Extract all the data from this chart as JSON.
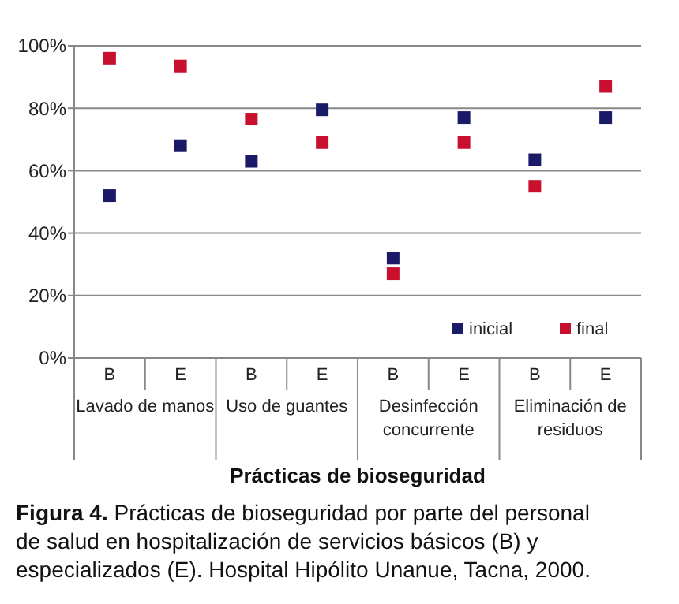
{
  "chart_data": {
    "type": "scatter",
    "xlabel": "Prácticas de bioseguridad",
    "categories": [
      "B",
      "E",
      "B",
      "E",
      "B",
      "E",
      "B",
      "E"
    ],
    "series": [
      {
        "name": "inicial",
        "color": "#1a1a66",
        "values": [
          52,
          68,
          63,
          79.5,
          32,
          77,
          63.5,
          77
        ]
      },
      {
        "name": "final",
        "color": "#c8102e",
        "values": [
          96,
          93.5,
          76.5,
          69,
          27,
          69,
          55,
          87
        ]
      }
    ],
    "ylim": [
      0,
      100
    ],
    "yticks": [
      {
        "value": 0,
        "label": "0%"
      },
      {
        "value": 20,
        "label": "20%"
      },
      {
        "value": 40,
        "label": "40%"
      },
      {
        "value": 60,
        "label": "60%"
      },
      {
        "value": 80,
        "label": "80%"
      },
      {
        "value": 100,
        "label": "100%"
      }
    ],
    "grid": "y",
    "legend": "bottom right",
    "marker": "square",
    "annotations": [
      "Lavado de manos",
      "Uso de guantes",
      "Desinfección concurrente",
      "Eliminación de residuos",
      "Figura 4. Prácticas de bioseguridad por parte del personal de salud en hospitalización de servicios básicos (B) y especializados (E). Hospital Hipólito Unanue, Tacna, 2000."
    ]
  }
}
